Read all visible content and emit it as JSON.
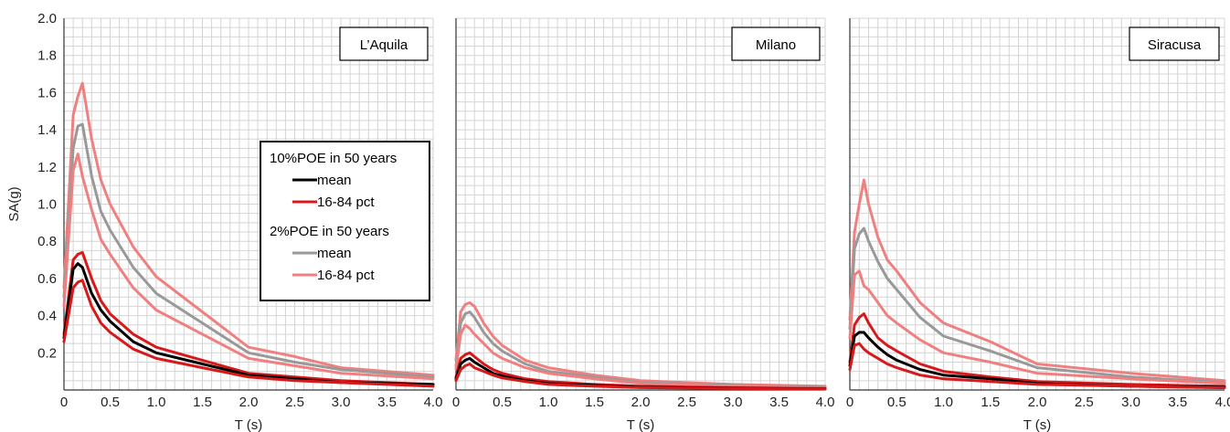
{
  "chart_data": [
    {
      "type": "line",
      "title": "L’Aquila",
      "xlabel": "T (s)",
      "ylabel": "SA(g)",
      "xlim": [
        0,
        4.0
      ],
      "ylim": [
        0,
        2.0
      ],
      "xticks": [
        "0",
        "0.5",
        "1.0",
        "1.5",
        "2.0",
        "2.5",
        "3.0",
        "3.5",
        "4.0"
      ],
      "yticks": [
        "0.2",
        "0.4",
        "0.6",
        "0.8",
        "1.0",
        "1.2",
        "1.4",
        "1.6",
        "1.8",
        "2.0"
      ],
      "grid": true,
      "legend": {
        "position": "middle-right",
        "groups": [
          {
            "title": "10%POE in 50 years",
            "entries": [
              {
                "label": "mean",
                "color": "#000000"
              },
              {
                "label": "16-84 pct",
                "color": "#d7191c"
              }
            ]
          },
          {
            "title": "2%POE in 50 years",
            "entries": [
              {
                "label": "mean",
                "color": "#999999"
              },
              {
                "label": "16-84 pct",
                "color": "#f08080"
              }
            ]
          }
        ]
      },
      "series": [
        {
          "group": "2%POE in 50 years",
          "stat": "84 pct",
          "color": "#f08080",
          "x": [
            0,
            0.1,
            0.15,
            0.2,
            0.3,
            0.4,
            0.5,
            0.75,
            1.0,
            1.5,
            2.0,
            2.5,
            3.0,
            4.0
          ],
          "y": [
            0.55,
            1.48,
            1.58,
            1.65,
            1.35,
            1.13,
            1.0,
            0.77,
            0.61,
            0.42,
            0.23,
            0.18,
            0.12,
            0.08
          ]
        },
        {
          "group": "2%POE in 50 years",
          "stat": "mean",
          "color": "#999999",
          "x": [
            0,
            0.1,
            0.15,
            0.2,
            0.3,
            0.4,
            0.5,
            0.75,
            1.0,
            1.5,
            2.0,
            2.5,
            3.0,
            4.0
          ],
          "y": [
            0.5,
            1.3,
            1.42,
            1.43,
            1.15,
            0.96,
            0.86,
            0.66,
            0.52,
            0.36,
            0.2,
            0.15,
            0.11,
            0.07
          ]
        },
        {
          "group": "2%POE in 50 years",
          "stat": "16 pct",
          "color": "#f08080",
          "x": [
            0,
            0.1,
            0.15,
            0.2,
            0.3,
            0.4,
            0.5,
            0.75,
            1.0,
            1.5,
            2.0,
            2.5,
            3.0,
            4.0
          ],
          "y": [
            0.45,
            1.18,
            1.27,
            1.15,
            0.97,
            0.81,
            0.73,
            0.55,
            0.43,
            0.3,
            0.17,
            0.13,
            0.09,
            0.06
          ]
        },
        {
          "group": "10%POE in 50 years",
          "stat": "84 pct",
          "color": "#d7191c",
          "x": [
            0,
            0.1,
            0.15,
            0.2,
            0.3,
            0.4,
            0.5,
            0.75,
            1.0,
            1.5,
            2.0,
            2.5,
            3.0,
            4.0
          ],
          "y": [
            0.3,
            0.7,
            0.73,
            0.74,
            0.6,
            0.48,
            0.41,
            0.3,
            0.23,
            0.16,
            0.09,
            0.07,
            0.05,
            0.03
          ]
        },
        {
          "group": "10%POE in 50 years",
          "stat": "mean",
          "color": "#000000",
          "x": [
            0,
            0.1,
            0.15,
            0.2,
            0.3,
            0.4,
            0.5,
            0.75,
            1.0,
            1.5,
            2.0,
            2.5,
            3.0,
            4.0
          ],
          "y": [
            0.28,
            0.65,
            0.68,
            0.66,
            0.52,
            0.43,
            0.37,
            0.26,
            0.2,
            0.14,
            0.08,
            0.06,
            0.04,
            0.03
          ]
        },
        {
          "group": "10%POE in 50 years",
          "stat": "16 pct",
          "color": "#d7191c",
          "x": [
            0,
            0.1,
            0.15,
            0.2,
            0.3,
            0.4,
            0.5,
            0.75,
            1.0,
            1.5,
            2.0,
            2.5,
            3.0,
            4.0
          ],
          "y": [
            0.26,
            0.55,
            0.58,
            0.59,
            0.45,
            0.36,
            0.31,
            0.22,
            0.17,
            0.12,
            0.07,
            0.05,
            0.04,
            0.02
          ]
        }
      ]
    },
    {
      "type": "line",
      "title": "Milano",
      "xlabel": "T (s)",
      "xlim": [
        0,
        4.0
      ],
      "ylim": [
        0,
        2.0
      ],
      "xticks": [
        "0",
        "0.5",
        "1.0",
        "1.5",
        "2.0",
        "2.5",
        "3.0",
        "3.5",
        "4.0"
      ],
      "grid": true,
      "series": [
        {
          "group": "2%POE in 50 years",
          "stat": "84 pct",
          "color": "#f08080",
          "x": [
            0,
            0.05,
            0.1,
            0.15,
            0.2,
            0.3,
            0.4,
            0.5,
            0.75,
            1.0,
            1.5,
            2.0,
            3.0,
            4.0
          ],
          "y": [
            0.16,
            0.42,
            0.46,
            0.47,
            0.45,
            0.36,
            0.29,
            0.24,
            0.16,
            0.12,
            0.08,
            0.05,
            0.03,
            0.02
          ]
        },
        {
          "group": "2%POE in 50 years",
          "stat": "mean",
          "color": "#999999",
          "x": [
            0,
            0.05,
            0.1,
            0.15,
            0.2,
            0.3,
            0.4,
            0.5,
            0.75,
            1.0,
            1.5,
            2.0,
            3.0,
            4.0
          ],
          "y": [
            0.13,
            0.36,
            0.41,
            0.42,
            0.39,
            0.31,
            0.25,
            0.21,
            0.14,
            0.1,
            0.07,
            0.04,
            0.025,
            0.015
          ]
        },
        {
          "group": "2%POE in 50 years",
          "stat": "16 pct",
          "color": "#f08080",
          "x": [
            0,
            0.05,
            0.1,
            0.15,
            0.2,
            0.3,
            0.4,
            0.5,
            0.75,
            1.0,
            1.5,
            2.0,
            3.0,
            4.0
          ],
          "y": [
            0.11,
            0.3,
            0.35,
            0.33,
            0.3,
            0.25,
            0.2,
            0.17,
            0.12,
            0.09,
            0.06,
            0.035,
            0.02,
            0.012
          ]
        },
        {
          "group": "10%POE in 50 years",
          "stat": "84 pct",
          "color": "#d7191c",
          "x": [
            0,
            0.05,
            0.1,
            0.15,
            0.2,
            0.3,
            0.4,
            0.5,
            0.75,
            1.0,
            1.5,
            2.0,
            3.0,
            4.0
          ],
          "y": [
            0.07,
            0.17,
            0.19,
            0.2,
            0.18,
            0.14,
            0.11,
            0.09,
            0.06,
            0.045,
            0.03,
            0.02,
            0.012,
            0.008
          ]
        },
        {
          "group": "10%POE in 50 years",
          "stat": "mean",
          "color": "#000000",
          "x": [
            0,
            0.05,
            0.1,
            0.15,
            0.2,
            0.3,
            0.4,
            0.5,
            0.75,
            1.0,
            1.5,
            2.0,
            3.0,
            4.0
          ],
          "y": [
            0.06,
            0.14,
            0.16,
            0.17,
            0.15,
            0.12,
            0.09,
            0.075,
            0.05,
            0.035,
            0.025,
            0.015,
            0.01,
            0.006
          ]
        },
        {
          "group": "10%POE in 50 years",
          "stat": "16 pct",
          "color": "#d7191c",
          "x": [
            0,
            0.05,
            0.1,
            0.15,
            0.2,
            0.3,
            0.4,
            0.5,
            0.75,
            1.0,
            1.5,
            2.0,
            3.0,
            4.0
          ],
          "y": [
            0.05,
            0.11,
            0.13,
            0.14,
            0.12,
            0.1,
            0.08,
            0.065,
            0.045,
            0.03,
            0.02,
            0.013,
            0.008,
            0.005
          ]
        }
      ]
    },
    {
      "type": "line",
      "title": "Siracusa",
      "xlabel": "T (s)",
      "xlim": [
        0,
        4.0
      ],
      "ylim": [
        0,
        2.0
      ],
      "xticks": [
        "0",
        "0.5",
        "1.0",
        "1.5",
        "2.0",
        "2.5",
        "3.0",
        "3.5",
        "4.0"
      ],
      "grid": true,
      "series": [
        {
          "group": "2%POE in 50 years",
          "stat": "84 pct",
          "color": "#f08080",
          "x": [
            0,
            0.05,
            0.1,
            0.15,
            0.2,
            0.3,
            0.4,
            0.5,
            0.75,
            1.0,
            1.5,
            2.0,
            3.0,
            4.0
          ],
          "y": [
            0.38,
            0.85,
            1.0,
            1.13,
            1.0,
            0.82,
            0.7,
            0.64,
            0.47,
            0.36,
            0.26,
            0.14,
            0.09,
            0.05
          ]
        },
        {
          "group": "2%POE in 50 years",
          "stat": "mean",
          "color": "#999999",
          "x": [
            0,
            0.05,
            0.1,
            0.15,
            0.2,
            0.3,
            0.4,
            0.5,
            0.75,
            1.0,
            1.5,
            2.0,
            3.0,
            4.0
          ],
          "y": [
            0.33,
            0.76,
            0.84,
            0.87,
            0.8,
            0.69,
            0.6,
            0.54,
            0.39,
            0.29,
            0.21,
            0.12,
            0.07,
            0.04
          ]
        },
        {
          "group": "2%POE in 50 years",
          "stat": "16 pct",
          "color": "#f08080",
          "x": [
            0,
            0.05,
            0.1,
            0.15,
            0.2,
            0.3,
            0.4,
            0.5,
            0.75,
            1.0,
            1.5,
            2.0,
            3.0,
            4.0
          ],
          "y": [
            0.28,
            0.62,
            0.64,
            0.56,
            0.54,
            0.47,
            0.4,
            0.36,
            0.27,
            0.2,
            0.15,
            0.09,
            0.06,
            0.035
          ]
        },
        {
          "group": "10%POE in 50 years",
          "stat": "84 pct",
          "color": "#d7191c",
          "x": [
            0,
            0.05,
            0.1,
            0.15,
            0.2,
            0.3,
            0.4,
            0.5,
            0.75,
            1.0,
            1.5,
            2.0,
            3.0,
            4.0
          ],
          "y": [
            0.15,
            0.35,
            0.39,
            0.41,
            0.36,
            0.28,
            0.24,
            0.21,
            0.14,
            0.1,
            0.07,
            0.045,
            0.03,
            0.02
          ]
        },
        {
          "group": "10%POE in 50 years",
          "stat": "mean",
          "color": "#000000",
          "x": [
            0,
            0.05,
            0.1,
            0.15,
            0.2,
            0.3,
            0.4,
            0.5,
            0.75,
            1.0,
            1.5,
            2.0,
            3.0,
            4.0
          ],
          "y": [
            0.13,
            0.29,
            0.31,
            0.31,
            0.28,
            0.23,
            0.19,
            0.16,
            0.11,
            0.08,
            0.06,
            0.035,
            0.02,
            0.015
          ]
        },
        {
          "group": "10%POE in 50 years",
          "stat": "16 pct",
          "color": "#d7191c",
          "x": [
            0,
            0.05,
            0.1,
            0.15,
            0.2,
            0.3,
            0.4,
            0.5,
            0.75,
            1.0,
            1.5,
            2.0,
            3.0,
            4.0
          ],
          "y": [
            0.11,
            0.24,
            0.25,
            0.22,
            0.2,
            0.17,
            0.14,
            0.12,
            0.08,
            0.06,
            0.045,
            0.03,
            0.02,
            0.012
          ]
        }
      ]
    }
  ]
}
